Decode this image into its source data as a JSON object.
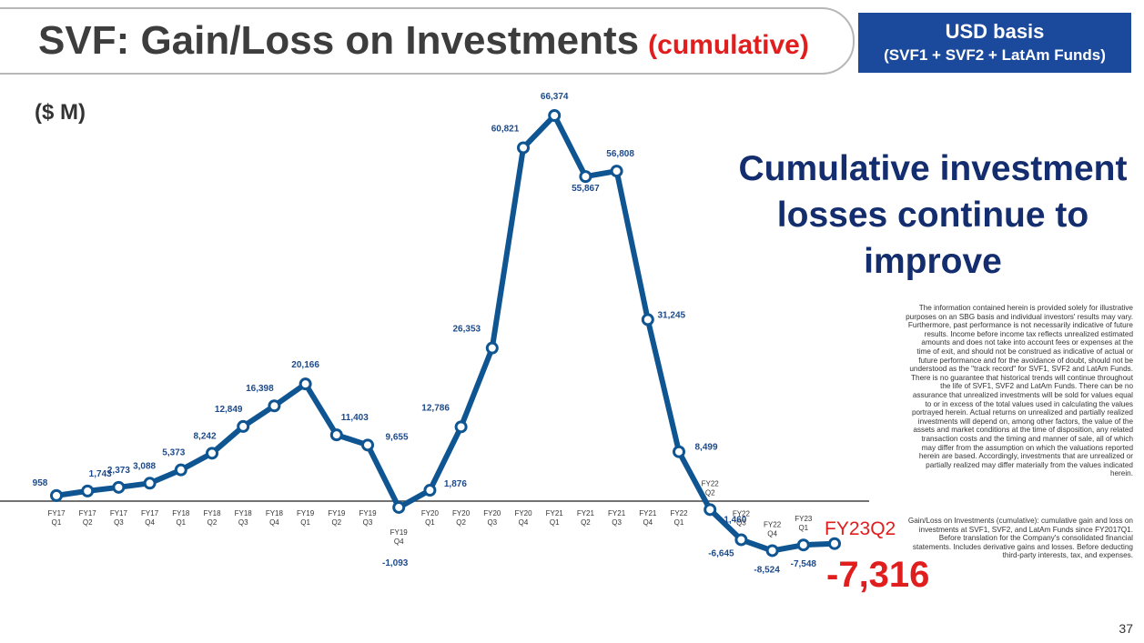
{
  "title": {
    "main": "SVF: Gain/Loss on Investments",
    "accent": "(cumulative)"
  },
  "badge": {
    "line1": "USD basis",
    "line2": "(SVF1 + SVF2 + LatAm Funds)"
  },
  "unit_label": "($ M)",
  "headline": "Cumulative investment losses continue to improve",
  "callout": {
    "label": "FY23Q2",
    "value": "-7,316"
  },
  "disclaimer": "The information contained herein is provided solely for illustrative purposes on an SBG basis and individual investors' results may vary. Furthermore, past performance is not necessarily indicative of future results. Income before income tax reflects unrealized estimated amounts and does not take into account fees or expenses at the time of exit, and should not be construed as indicative of actual or future performance and for the avoidance of doubt, should not be understood as the \"track record\" for SVF1, SVF2 and LatAm Funds. There is no guarantee that historical trends will continue throughout the life of SVF1, SVF2 and LatAm Funds. There can be no assurance that unrealized investments will be sold for values equal to or in excess of the total values used in calculating the values portrayed herein. Actual returns on unrealized and partially realized investments will depend on, among other factors, the value of the assets and market conditions at the time of disposition, any related transaction costs and the timing and manner of sale, all of which may differ from the assumption on which the valuations reported herein are based. Accordingly, investments that are unrealized or partially realized may differ materially from the values indicated herein.",
  "note": "Gain/Loss on Investments (cumulative): cumulative gain and loss on investments at SVF1, SVF2, and LatAm Funds since FY2017Q1. Before translation for the Company's consolidated financial statements. Includes derivative gains and losses. Before deducting third-party interests, tax, and expenses.",
  "page_number": "37",
  "colors": {
    "line": "#0f5592",
    "accent": "#e01e1e",
    "badge": "#1b4a9c",
    "headline": "#142d6e"
  },
  "chart_data": {
    "type": "line",
    "categories": [
      [
        "FY17",
        "Q1"
      ],
      [
        "FY17",
        "Q2"
      ],
      [
        "FY17",
        "Q3"
      ],
      [
        "FY17",
        "Q4"
      ],
      [
        "FY18",
        "Q1"
      ],
      [
        "FY18",
        "Q2"
      ],
      [
        "FY18",
        "Q3"
      ],
      [
        "FY18",
        "Q4"
      ],
      [
        "FY19",
        "Q1"
      ],
      [
        "FY19",
        "Q2"
      ],
      [
        "FY19",
        "Q3"
      ],
      [
        "FY19",
        "Q4"
      ],
      [
        "FY20",
        "Q1"
      ],
      [
        "FY20",
        "Q2"
      ],
      [
        "FY20",
        "Q3"
      ],
      [
        "FY20",
        "Q4"
      ],
      [
        "FY21",
        "Q1"
      ],
      [
        "FY21",
        "Q2"
      ],
      [
        "FY21",
        "Q3"
      ],
      [
        "FY21",
        "Q4"
      ],
      [
        "FY22",
        "Q1"
      ],
      [
        "FY22",
        "Q2"
      ],
      [
        "FY22",
        "Q3"
      ],
      [
        "FY22",
        "Q4"
      ],
      [
        "FY23",
        "Q1"
      ],
      [
        "FY23",
        "Q2"
      ]
    ],
    "series": [
      {
        "values": [
          958,
          1743,
          2373,
          3088,
          5373,
          8242,
          12849,
          16398,
          20166,
          11403,
          9655,
          -1093,
          1876,
          12786,
          26353,
          60821,
          66374,
          55867,
          56808,
          31245,
          8499,
          -1460,
          -6645,
          -8524,
          -7548,
          -7316
        ],
        "labels": [
          "958",
          "1,743",
          "2,373",
          "3,088",
          "5,373",
          "8,242",
          "12,849",
          "16,398",
          "20,166",
          "11,403",
          "9,655",
          "-1,093",
          "1,876",
          "12,786",
          "26,353",
          "60,821",
          "66,374",
          "55,867",
          "56,808",
          "31,245",
          "8,499",
          "-1,460",
          "-6,645",
          "-8,524",
          "-7,548",
          ""
        ]
      }
    ],
    "ylim": [
      -12000,
      72000
    ],
    "grid": false,
    "baseline": 0
  }
}
